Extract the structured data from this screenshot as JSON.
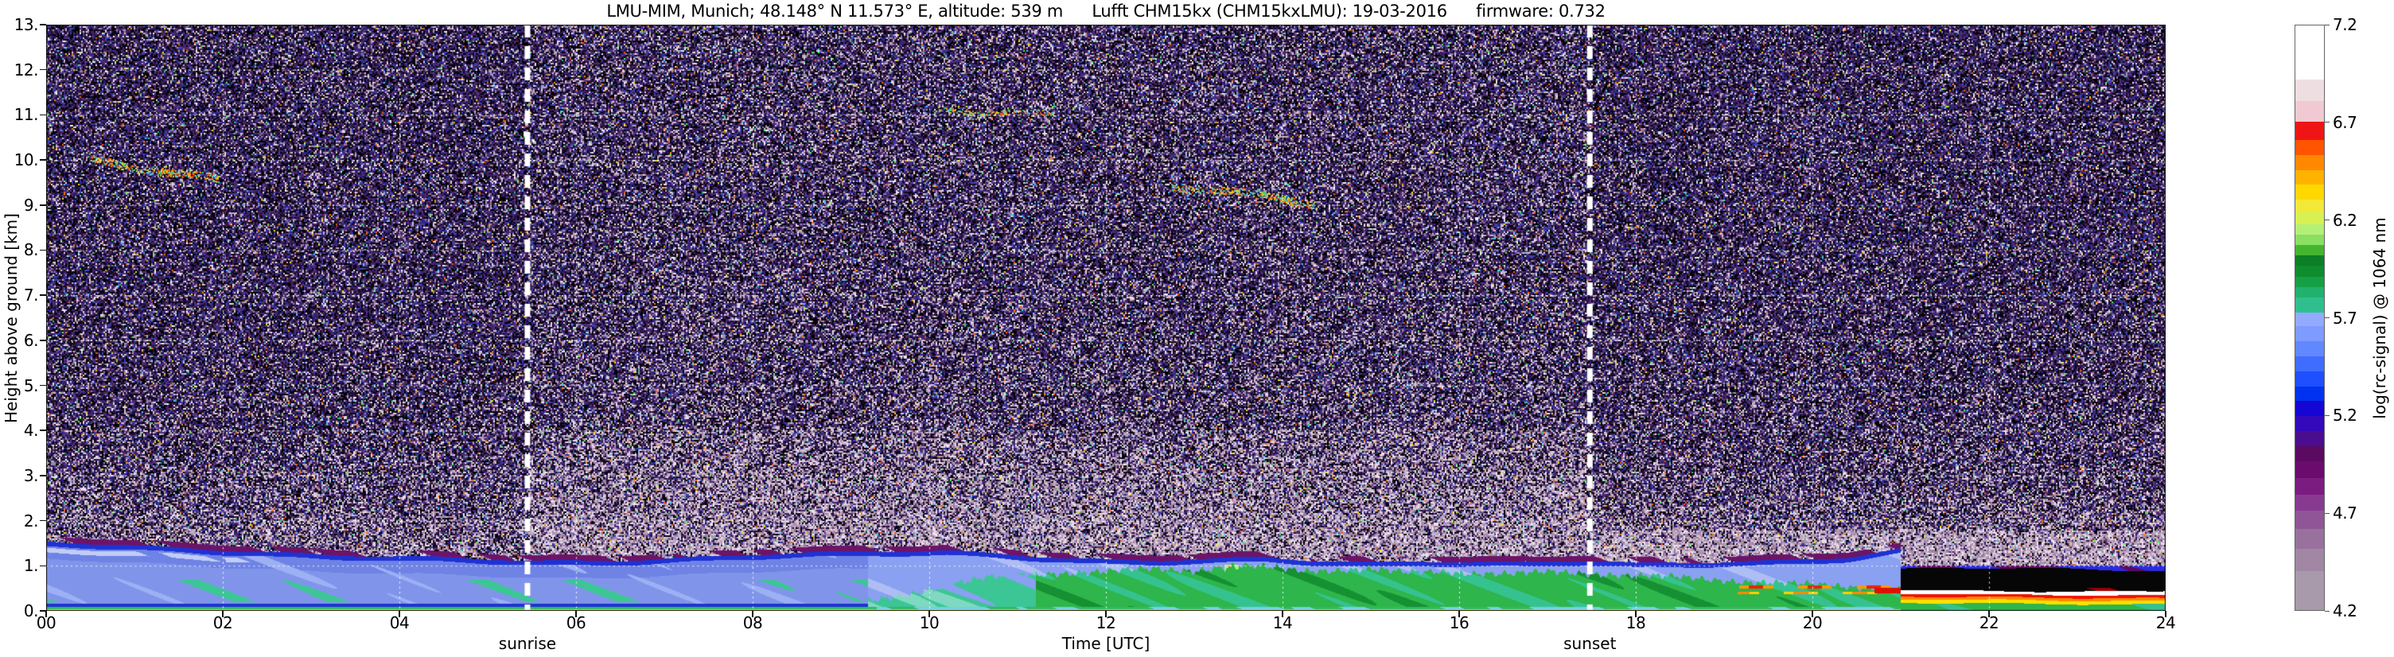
{
  "title": {
    "location": "LMU-MIM, Munich; 48.148° N 11.573° E, altitude: 539 m",
    "instrument": "Lufft CHM15kx (CHM15kxLMU): 19-03-2016",
    "firmware": "firmware: 0.732"
  },
  "axes": {
    "x": {
      "label": "Time [UTC]",
      "ticks": [
        "00",
        "02",
        "04",
        "06",
        "08",
        "10",
        "12",
        "14",
        "16",
        "18",
        "20",
        "22",
        "24"
      ],
      "range_hours": [
        0,
        24
      ]
    },
    "y": {
      "label": "Height above ground [km]",
      "ticks": [
        "0.",
        "1.",
        "2.",
        "3.",
        "4.",
        "5.",
        "6.",
        "7.",
        "8.",
        "9.",
        "10.",
        "11.",
        "12.",
        "13."
      ],
      "range_km": [
        0,
        13
      ]
    }
  },
  "annotations": {
    "sunrise": {
      "label": "sunrise",
      "hour": 5.45
    },
    "sunset": {
      "label": "sunset",
      "hour": 17.48
    }
  },
  "colorbar": {
    "label": "log(rc-signal) @ 1064 nm",
    "tick_labels": [
      "7.2",
      "6.7",
      "6.2",
      "5.7",
      "5.2",
      "4.7",
      "4.2"
    ],
    "segments": [
      [
        "#a899ab",
        2.6
      ],
      [
        "#a287a4",
        1.5
      ],
      [
        "#99719d",
        1.3
      ],
      [
        "#8f5596",
        1.2
      ],
      [
        "#873a90",
        1.1
      ],
      [
        "#7b1c81",
        1.1
      ],
      [
        "#6b0b6e",
        1.1
      ],
      [
        "#5a0a60",
        1.0
      ],
      [
        "#4a0d8f",
        1.0
      ],
      [
        "#3309bb",
        1.0
      ],
      [
        "#1506d6",
        1.0
      ],
      [
        "#0032f0",
        1.0
      ],
      [
        "#1e50ff",
        1.0
      ],
      [
        "#3e6dff",
        1.0
      ],
      [
        "#6288ff",
        1.0
      ],
      [
        "#7e9bff",
        1.0
      ],
      [
        "#93aaff",
        0.9
      ],
      [
        "#2fbf8f",
        1.0
      ],
      [
        "#22b06d",
        0.7
      ],
      [
        "#15a046",
        0.7
      ],
      [
        "#0e8c2e",
        0.7
      ],
      [
        "#0c7f26",
        0.7
      ],
      [
        "#45b531",
        0.7
      ],
      [
        "#8ae062",
        0.7
      ],
      [
        "#b4f078",
        0.7
      ],
      [
        "#d8f052",
        0.8
      ],
      [
        "#f2e838",
        0.8
      ],
      [
        "#ffd800",
        1.0
      ],
      [
        "#ffb200",
        1.0
      ],
      [
        "#ff8800",
        1.0
      ],
      [
        "#ff5500",
        1.0
      ],
      [
        "#ef1515",
        1.2
      ],
      [
        "#f0c9d2",
        1.4
      ],
      [
        "#eedee2",
        1.4
      ],
      [
        "#ffffff",
        3.6
      ]
    ]
  },
  "chart_data": {
    "type": "heatmap",
    "title": "LMU-MIM, Munich; 48.148° N 11.573° E, altitude: 539 m — Lufft CHM15kx (CHM15kxLMU): 19-03-2016 — firmware: 0.732",
    "xlabel": "Time [UTC]",
    "ylabel": "Height above ground [km]",
    "x_range_hours": [
      0,
      24
    ],
    "y_range_km": [
      0,
      13
    ],
    "colorbar_label": "log(rc-signal) @ 1064 nm",
    "colorbar_range": [
      4.2,
      7.2
    ],
    "colorbar_tick_step": 0.5,
    "sunrise_hour": 5.45,
    "sunset_hour": 17.48,
    "grid": {
      "x_step_hours": 2,
      "y_step_km": 1,
      "color": "#ffffff",
      "style": "dashed"
    },
    "features": {
      "noise": {
        "dark_colors": [
          "#000000",
          "#000000",
          "#120822",
          "#251038",
          "#381d52",
          "#4a2a6b",
          "#2e2290",
          "#3946b4",
          "#552f80",
          "#1a0d2a",
          "#000000",
          "#452a60"
        ],
        "bright_speckle_colors": [
          "#b49cb4",
          "#c6b2c6",
          "#dccbdc",
          "#a98ca9",
          "#efe3ef",
          "#967b9b"
        ],
        "accent_colors": [
          "#2fbf8f",
          "#e8e020",
          "#ff5500",
          "#44ccff",
          "#ffffff",
          "#55ee66",
          "#ff8800"
        ],
        "accent_probability": 0.022,
        "base_bright_fraction": 0.16,
        "low_altitude_bright_boost": 0.38,
        "daytime_bright_boost": 0.18,
        "evening_low_band_boost": 0.26
      },
      "layers": {
        "residual_blue": "#8095ea",
        "residual_blue_light": "#9db0f4",
        "residual_blue_deep": "#6e83e4",
        "subcap_white": "#c2cdf6",
        "cap_blue": "#1f32d2",
        "cap_purple": "#6d1468",
        "teal": "#3cc695",
        "teal_pale": "#7fd9c0",
        "green": "#2eb54b",
        "green_dark": "#159032",
        "green_teal": "#35c28f",
        "blue_above": "#8aa0f0",
        "blue_above_light": "#aebdf4"
      },
      "surface": {
        "rust": "#b34700",
        "yellow": "#ffe818",
        "green": "#2dbb66",
        "cyan": "#6fd0e8"
      },
      "residual_layer_top_km": [
        [
          0,
          1.52
        ],
        [
          0.8,
          1.46
        ],
        [
          1.6,
          1.42
        ],
        [
          2.4,
          1.36
        ],
        [
          3.2,
          1.26
        ],
        [
          4,
          1.18
        ],
        [
          5,
          1.12
        ],
        [
          5.6,
          1.1
        ],
        [
          6.4,
          1.14
        ],
        [
          7.2,
          1.2
        ],
        [
          8,
          1.24
        ],
        [
          9,
          1.28
        ],
        [
          9.6,
          1.32
        ],
        [
          10.2,
          1.36
        ],
        [
          10.8,
          1.32
        ],
        [
          11.4,
          1.24
        ],
        [
          12,
          1.16
        ],
        [
          12.6,
          1.12
        ],
        [
          13.2,
          1.14
        ],
        [
          13.8,
          1.18
        ],
        [
          14.4,
          1.12
        ],
        [
          15,
          1.1
        ],
        [
          15.6,
          1.14
        ],
        [
          16.2,
          1.1
        ],
        [
          16.8,
          1.06
        ],
        [
          17.4,
          1.08
        ],
        [
          18,
          1.02
        ],
        [
          18.6,
          1.06
        ],
        [
          19.2,
          1.12
        ],
        [
          19.8,
          1.16
        ],
        [
          20.4,
          1.22
        ],
        [
          21,
          1.38
        ]
      ],
      "mixed_layer_top_km": [
        [
          9,
          0.1
        ],
        [
          9.4,
          0.18
        ],
        [
          9.8,
          0.35
        ],
        [
          10.2,
          0.55
        ],
        [
          10.6,
          0.72
        ],
        [
          11,
          0.82
        ],
        [
          11.5,
          0.88
        ],
        [
          12,
          0.9
        ],
        [
          12.5,
          0.94
        ],
        [
          13,
          0.88
        ],
        [
          13.42,
          0.98
        ],
        [
          13.8,
          0.94
        ],
        [
          14.2,
          0.88
        ],
        [
          14.6,
          0.92
        ],
        [
          15,
          0.96
        ],
        [
          15.4,
          0.9
        ],
        [
          15.8,
          0.94
        ],
        [
          16.2,
          0.9
        ],
        [
          16.6,
          0.86
        ],
        [
          17,
          0.88
        ],
        [
          17.5,
          0.82
        ],
        [
          18,
          0.76
        ],
        [
          18.5,
          0.72
        ],
        [
          19,
          0.68
        ],
        [
          19.5,
          0.66
        ],
        [
          20,
          0.62
        ],
        [
          20.5,
          0.56
        ],
        [
          21,
          0.5
        ]
      ],
      "plume_spike": {
        "hour": 13.42,
        "half_width_hours": 0.08,
        "top_km": 1.03,
        "core": {
          "half_width_hours": 0.035,
          "km": [
            0.72,
            0.99
          ],
          "yellow": "#ffd900",
          "red": "#ff5500"
        },
        "halo": "#aef07c"
      },
      "evening_streaks": {
        "t_range": [
          19.15,
          20.95
        ],
        "bands": [
          {
            "km": [
              0.5,
              0.57
            ],
            "color": "#ff9900",
            "hot": "#ee2200"
          },
          {
            "km": [
              0.38,
              0.44
            ],
            "color": "#ffd000",
            "hot": "#ff8800"
          }
        ],
        "end_blob": {
          "t_range": [
            20.7,
            21.0
          ],
          "km": [
            0.4,
            0.52
          ],
          "color": "#dd1100"
        }
      },
      "fog_low_cloud": {
        "t_start": 21,
        "t_end": 24,
        "colors": {
          "green": "#2eb54b",
          "yellow": "#ffe000",
          "orange": "#ff8800",
          "red": "#ee1100",
          "white": "#ffffff",
          "black": "#060606",
          "cap": "#5a0a60",
          "cap2": "#2a2ae0"
        }
      },
      "cirrus": [
        {
          "t0": 0.45,
          "t1": 1.95,
          "k0": 10.05,
          "k1": 9.55,
          "thickness_km": 0.16,
          "density": 0.8
        },
        {
          "t0": 10.1,
          "t1": 11.4,
          "k0": 11.15,
          "k1": 11.0,
          "thickness_km": 0.1,
          "density": 0.25
        },
        {
          "t0": 12.75,
          "t1": 14.4,
          "k0": 9.45,
          "k1": 9.05,
          "thickness_km": 0.16,
          "density": 0.7
        }
      ],
      "cirrus_colors": [
        "#d8d820",
        "#ff9900",
        "#3fcf7f",
        "#66ccee",
        "#ee5500"
      ]
    }
  }
}
